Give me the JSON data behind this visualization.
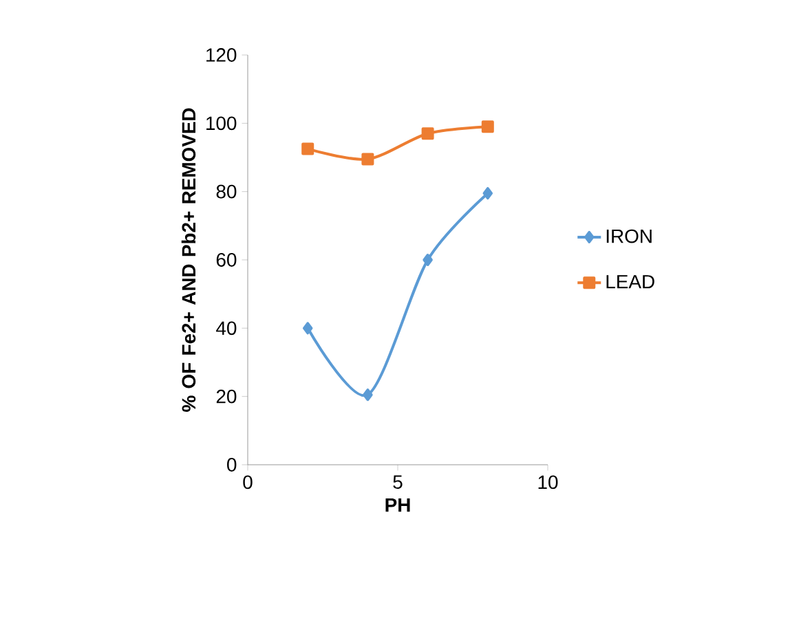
{
  "chart_data": {
    "type": "line",
    "xlabel": "PH",
    "ylabel": "% OF Fe2+ AND Pb2+ REMOVED",
    "xlim": [
      0,
      10
    ],
    "xticks": [
      0,
      5,
      10
    ],
    "ylim": [
      0,
      120
    ],
    "yticks": [
      0,
      20,
      40,
      60,
      80,
      100,
      120
    ],
    "series": [
      {
        "name": "IRON",
        "color": "#5b9bd5",
        "marker": "diamond",
        "x": [
          2,
          4,
          6,
          8
        ],
        "values": [
          40,
          20.5,
          60,
          79.5
        ]
      },
      {
        "name": "LEAD",
        "color": "#ed7d31",
        "marker": "square",
        "x": [
          2,
          4,
          6,
          8
        ],
        "values": [
          92.5,
          89.5,
          97,
          99
        ]
      }
    ],
    "legend": "right",
    "grid": false
  }
}
